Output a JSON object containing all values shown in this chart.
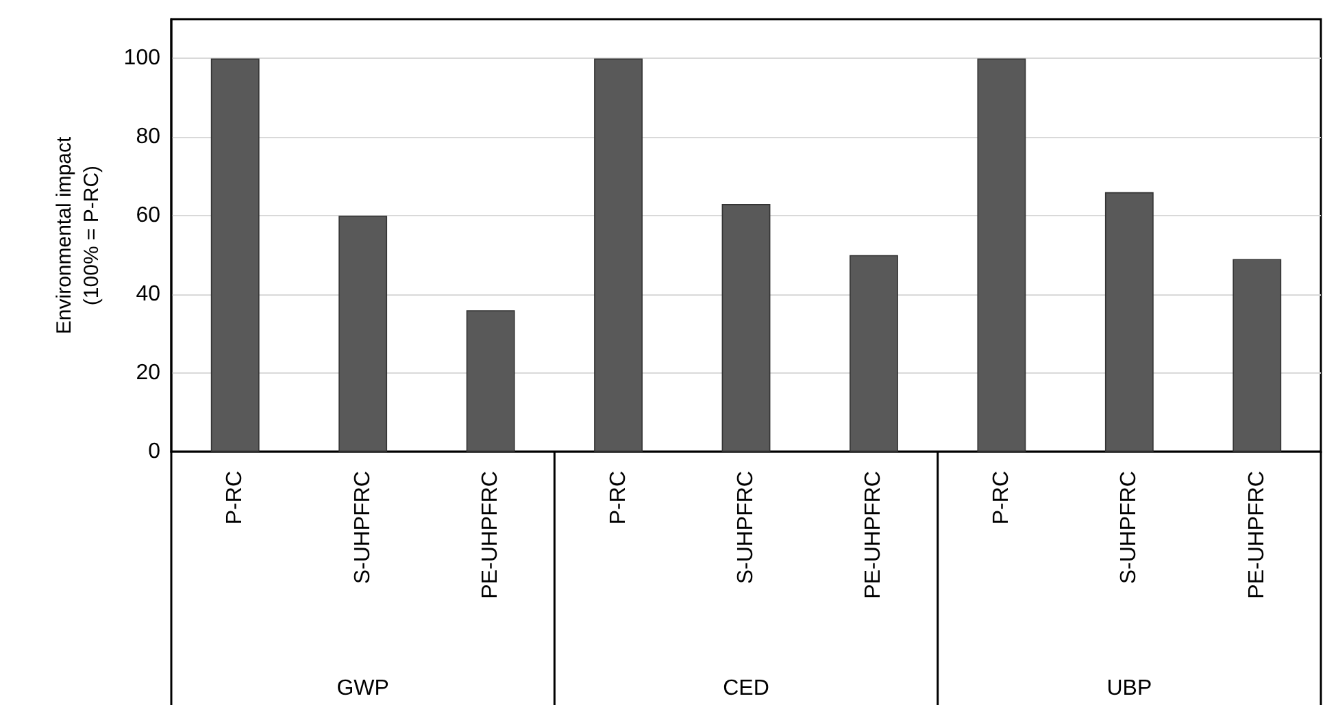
{
  "chart_data": {
    "type": "bar",
    "ylabel": "Environmental impact\n(100% = P-RC)",
    "categories": [
      "P-RC",
      "S-UHPFRC",
      "PE-UHPFRC",
      "P-RC",
      "S-UHPFRC",
      "PE-UHPFRC",
      "P-RC",
      "S-UHPFRC",
      "PE-UHPFRC"
    ],
    "values": [
      100,
      60,
      36,
      100,
      63,
      50,
      100,
      66,
      49
    ],
    "color": "#595959",
    "annotations": [
      "GWP",
      "CED",
      "UBP"
    ],
    "ylim": [
      0,
      110
    ],
    "yticks": [
      0,
      20,
      40,
      60,
      80,
      100
    ],
    "grid": "y"
  }
}
